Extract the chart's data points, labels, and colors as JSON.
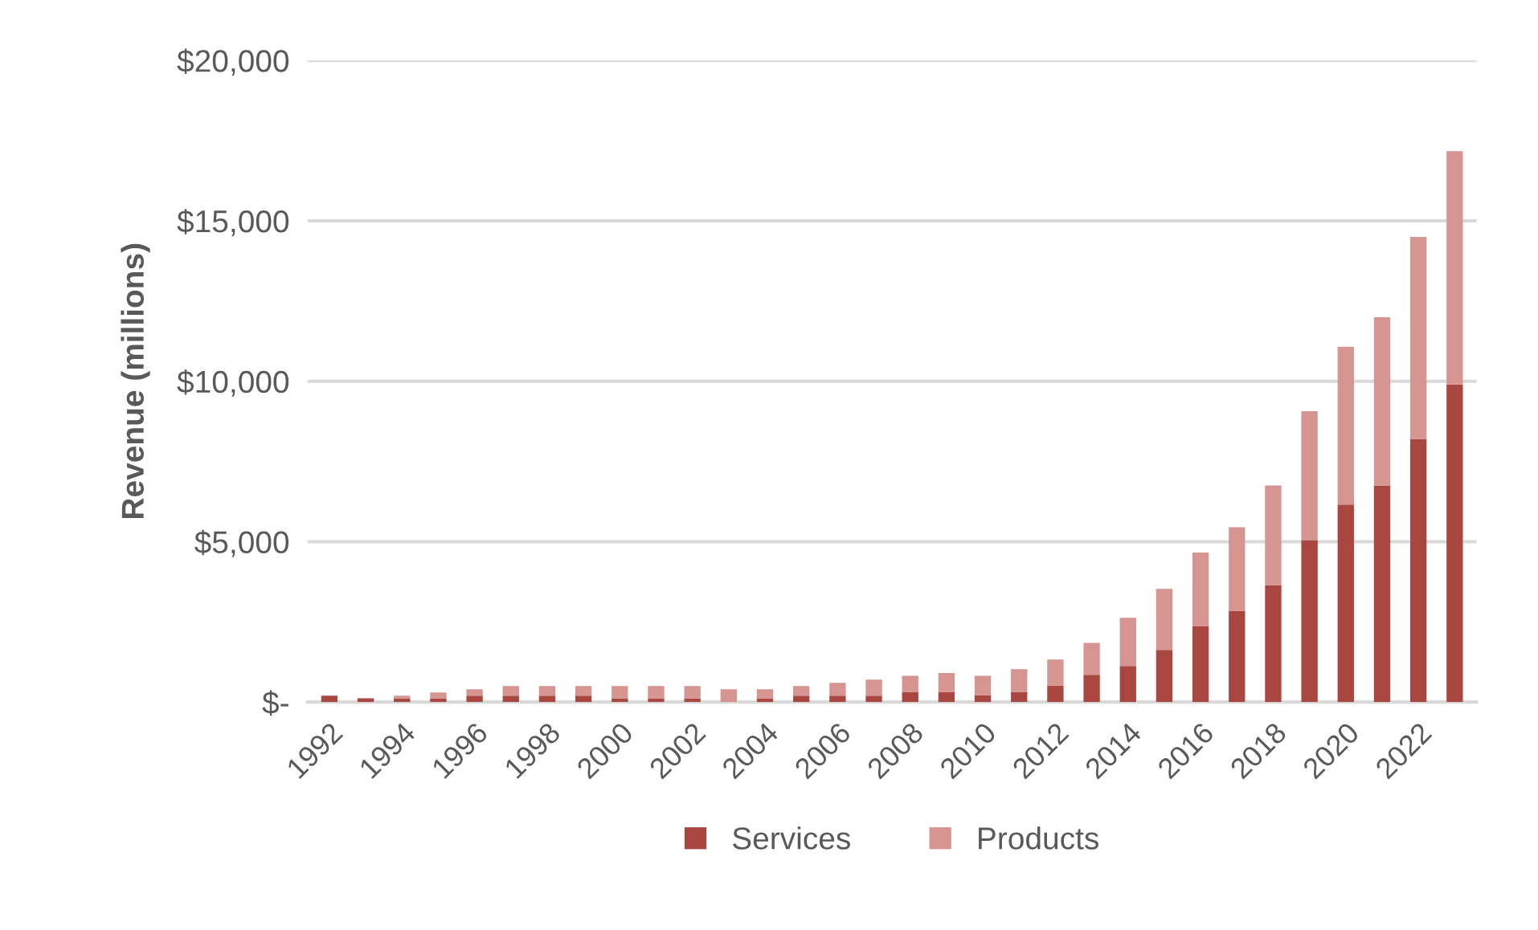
{
  "chart_data": {
    "type": "bar",
    "stacked": true,
    "ylabel": "Revenue (millions)",
    "categories": [
      "1992",
      null,
      "1994",
      null,
      "1996",
      null,
      "1998",
      null,
      "2000",
      null,
      "2002",
      null,
      "2004",
      null,
      "2006",
      null,
      "2008",
      null,
      "2010",
      null,
      "2012",
      null,
      "2014",
      null,
      "2016",
      null,
      "2018",
      null,
      "2020",
      null,
      "2022",
      null
    ],
    "series": [
      {
        "name": "Services",
        "color": "#a9463f",
        "values": [
          200,
          120,
          120,
          120,
          200,
          200,
          200,
          200,
          120,
          120,
          120,
          0,
          120,
          200,
          200,
          200,
          320,
          320,
          220,
          320,
          520,
          850,
          1130,
          1630,
          2360,
          2850,
          3650,
          5050,
          6160,
          6750,
          8200,
          9900
        ]
      },
      {
        "name": "Products",
        "color": "#d69591",
        "values": [
          0,
          0,
          80,
          180,
          200,
          300,
          300,
          300,
          380,
          380,
          380,
          400,
          280,
          300,
          400,
          500,
          500,
          590,
          600,
          710,
          810,
          1000,
          1500,
          1900,
          2300,
          2600,
          3100,
          4020,
          4920,
          5250,
          6300,
          7270
        ]
      }
    ],
    "ylim": [
      0,
      20000
    ],
    "yticks": [
      {
        "value": 0,
        "label": "$-"
      },
      {
        "value": 5000,
        "label": "$5,000"
      },
      {
        "value": 10000,
        "label": "$10,000"
      },
      {
        "value": 15000,
        "label": "$15,000"
      },
      {
        "value": 20000,
        "label": "$20,000"
      }
    ],
    "grid": "y",
    "legend": "bottom"
  }
}
